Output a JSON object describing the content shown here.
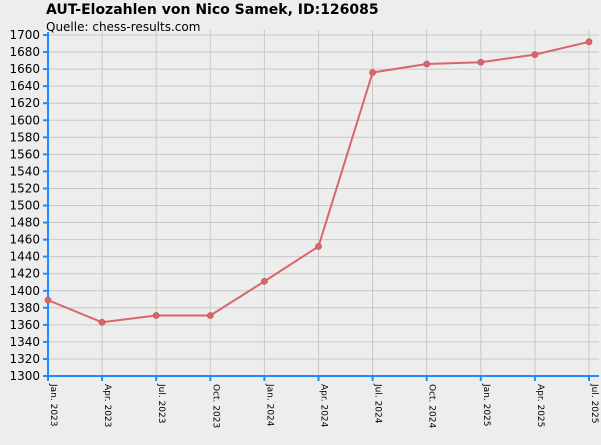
{
  "title": "AUT-Elozahlen von Nico Samek, ID:126085",
  "subtitle": "Quelle: chess-results.com",
  "colors": {
    "background": "#ededed",
    "grid": "#c8c8c8",
    "axis": "#1e8cff",
    "line": "#d9666a",
    "marker": "#d9666a"
  },
  "chart_data": {
    "type": "line",
    "title": "AUT-Elozahlen von Nico Samek, ID:126085",
    "subtitle": "Quelle: chess-results.com",
    "xlabel": "",
    "ylabel": "",
    "categories": [
      "Jan. 2023",
      "Apr. 2023",
      "Jul. 2023",
      "Oct. 2023",
      "Jan. 2024",
      "Apr. 2024",
      "Jul. 2024",
      "Oct. 2024",
      "Jan. 2025",
      "Apr. 2025",
      "Jul. 2025"
    ],
    "series": [
      {
        "values": [
          1389,
          1363,
          1371,
          1371,
          1411,
          1452,
          1656,
          1666,
          1668,
          1677,
          1692
        ]
      }
    ],
    "ylim": [
      1300,
      1700
    ],
    "yticks": [
      1300,
      1320,
      1340,
      1360,
      1380,
      1400,
      1420,
      1440,
      1460,
      1480,
      1500,
      1520,
      1540,
      1560,
      1580,
      1600,
      1620,
      1640,
      1660,
      1680,
      1700
    ],
    "grid": true,
    "legend": "none"
  }
}
